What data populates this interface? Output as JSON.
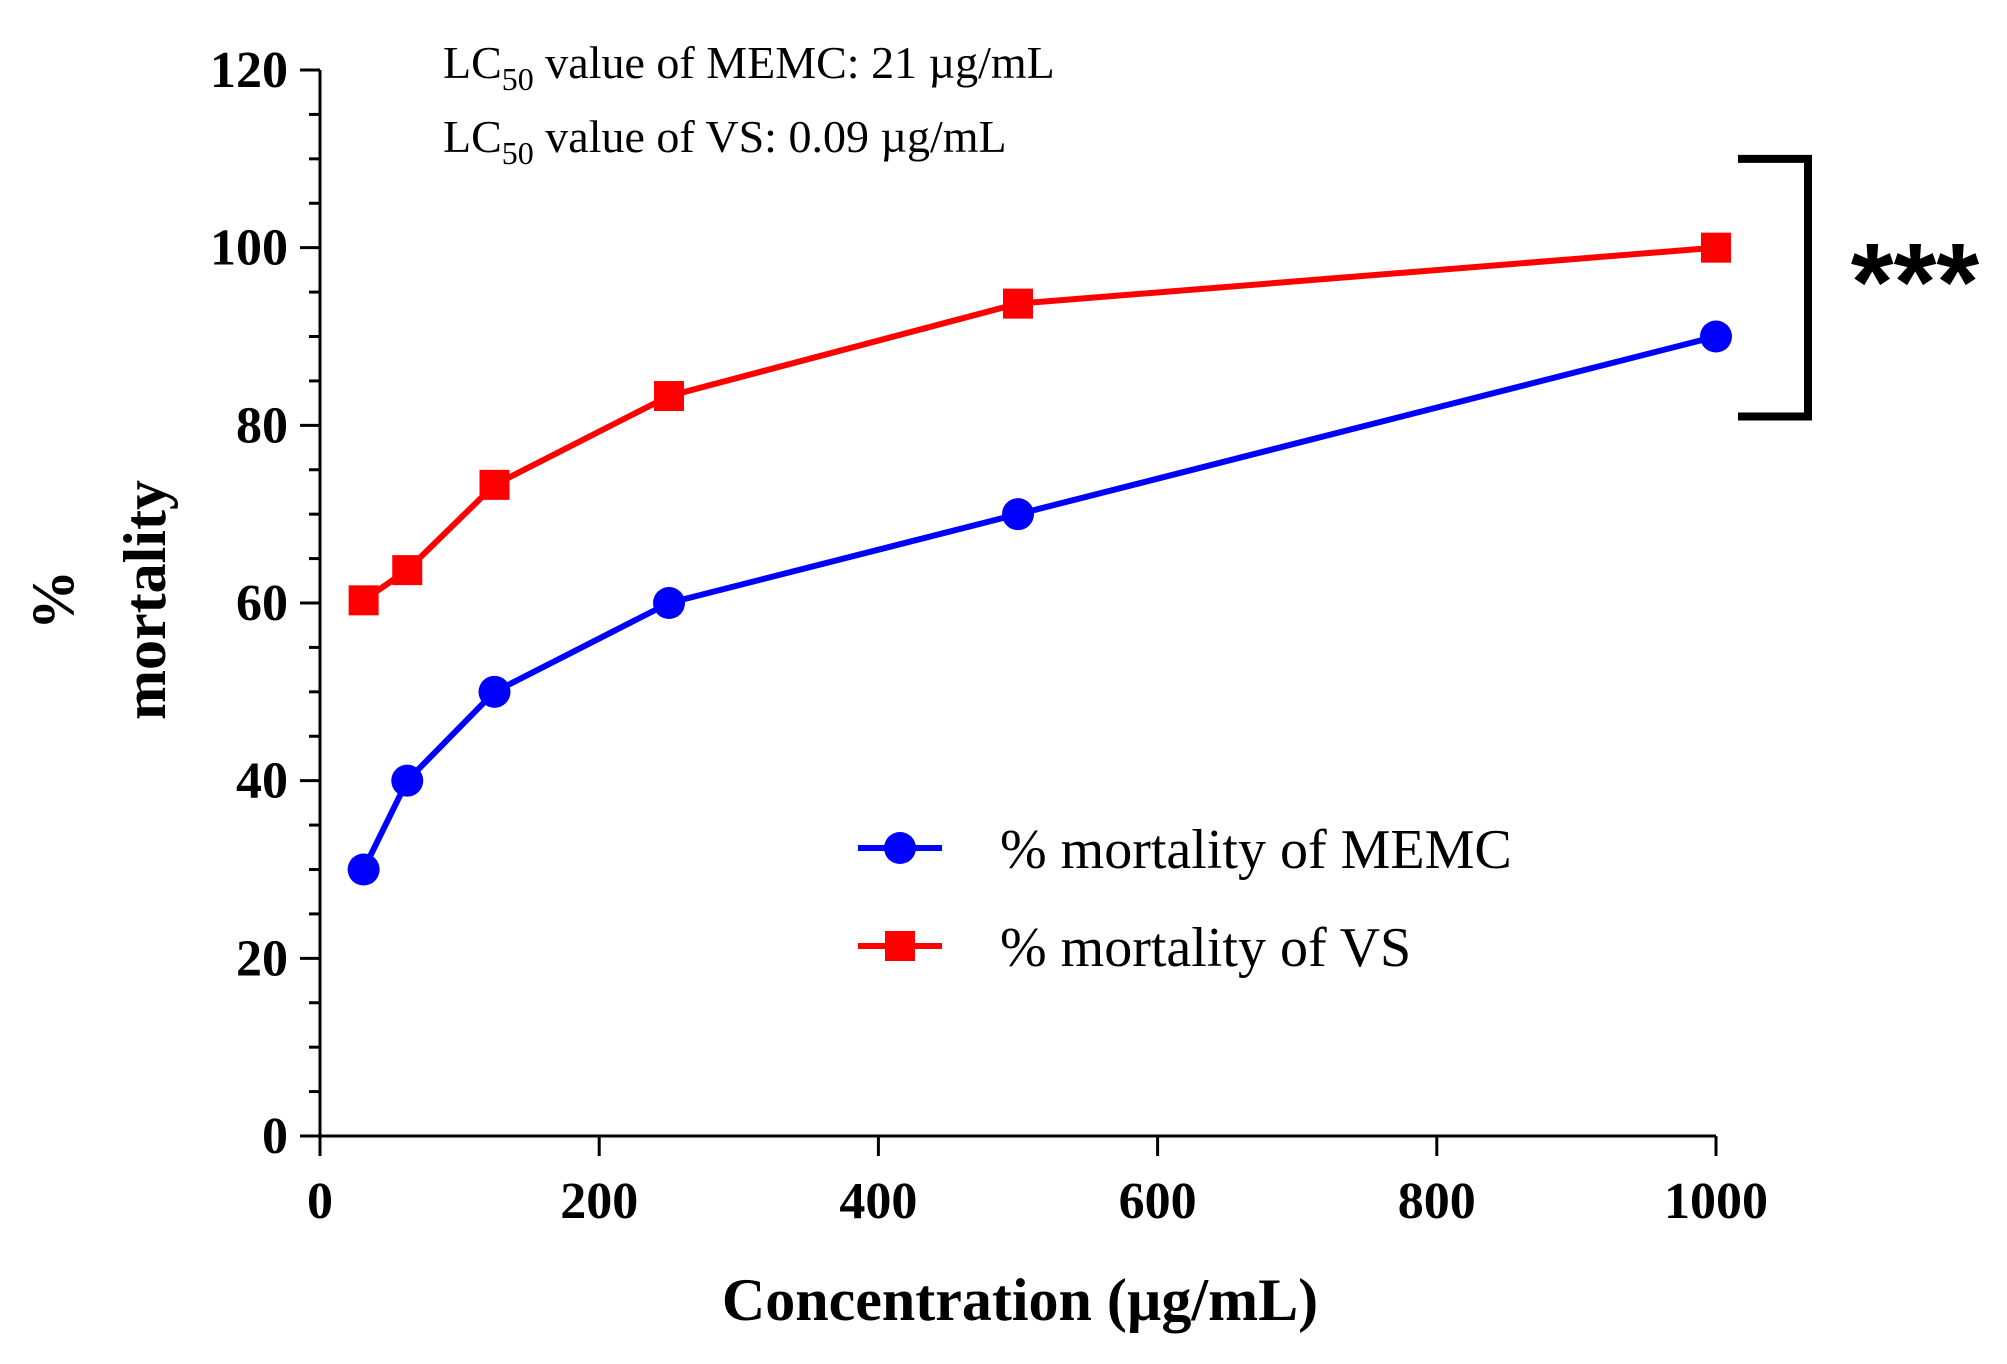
{
  "chart_data": {
    "type": "line",
    "title": "",
    "xlabel": "Concentration (µg/mL)",
    "ylabel_lines": [
      "%",
      "mortality"
    ],
    "xlim": [
      0,
      1000
    ],
    "ylim": [
      0,
      120
    ],
    "xticks": [
      0,
      200,
      400,
      600,
      800,
      1000
    ],
    "yticks": [
      0,
      20,
      40,
      60,
      80,
      100,
      120
    ],
    "y_minor_step": 5,
    "grid": false,
    "legend_position": "center-right",
    "series": [
      {
        "name": "% mortality of MEMC",
        "color": "#0000ff",
        "marker": "circle",
        "x": [
          31.25,
          62.5,
          125,
          250,
          500,
          1000
        ],
        "y": [
          30,
          40,
          50,
          60,
          70,
          90
        ]
      },
      {
        "name": "% mortality of VS",
        "color": "#ff0000",
        "marker": "square",
        "x": [
          31.25,
          62.5,
          125,
          250,
          500,
          1000
        ],
        "y": [
          60.3,
          63.7,
          73.3,
          83.3,
          93.7,
          100
        ]
      }
    ],
    "annotations": [
      {
        "prefix": "LC",
        "subscript": "50",
        "suffix": " value of MEMC: 21 µg/mL"
      },
      {
        "prefix": "LC",
        "subscript": "50",
        "suffix": " value of VS: 0.09 µg/mL"
      }
    ],
    "significance": {
      "label": "***",
      "y_range": [
        81,
        110
      ]
    }
  }
}
